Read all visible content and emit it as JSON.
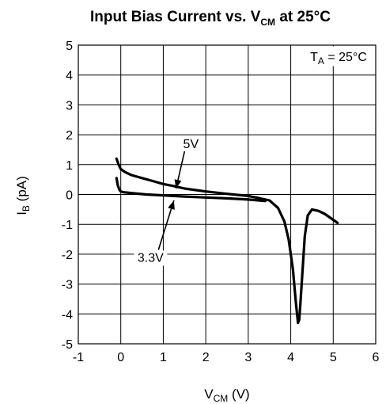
{
  "chart_data": {
    "type": "line",
    "title": {
      "prefix": "Input Bias Current vs. V",
      "sub": "CM",
      "suffix": " at 25°C"
    },
    "xlabel": {
      "main": "V",
      "sub": "CM",
      "suffix": " (V)"
    },
    "ylabel": {
      "main": "I",
      "sub": "B",
      "suffix": " (pA)"
    },
    "xlim": [
      -1,
      6
    ],
    "ylim": [
      -5,
      5
    ],
    "xticks": [
      "-1",
      "0",
      "1",
      "2",
      "3",
      "4",
      "5",
      "6"
    ],
    "yticks": [
      "5",
      "4",
      "3",
      "2",
      "1",
      "0",
      "-1",
      "-2",
      "-3",
      "-4",
      "-5"
    ],
    "grid": true,
    "condition_label": {
      "main": "T",
      "sub": "A",
      "suffix": " = 25°C"
    },
    "annotations": [
      {
        "text": "5V",
        "text_x": 1.65,
        "text_y": 1.55,
        "point_x": 1.3,
        "point_y": 0.2
      },
      {
        "text": "3.3V",
        "text_x": 0.7,
        "text_y": -2.25,
        "point_x": 1.25,
        "point_y": -0.2
      }
    ],
    "series": [
      {
        "color": "#000000",
        "x": [
          -0.1,
          -0.05,
          0,
          0.1,
          0.25,
          0.5,
          0.75,
          1,
          1.25,
          1.5,
          2,
          2.5,
          3,
          3.25,
          3.5,
          3.7,
          3.85,
          3.95,
          4.05,
          4.12,
          4.17,
          4.2,
          4.23,
          4.28,
          4.33,
          4.4,
          4.5,
          4.65,
          4.8,
          5,
          5.1
        ],
        "y": [
          1.2,
          1.0,
          0.85,
          0.75,
          0.65,
          0.55,
          0.45,
          0.35,
          0.28,
          0.2,
          0.1,
          0.02,
          -0.05,
          -0.12,
          -0.2,
          -0.45,
          -0.9,
          -1.5,
          -2.5,
          -3.6,
          -4.3,
          -4.2,
          -3.6,
          -2.5,
          -1.4,
          -0.7,
          -0.5,
          -0.55,
          -0.65,
          -0.85,
          -0.95
        ]
      },
      {
        "color": "#000000",
        "x": [
          -0.1,
          -0.07,
          -0.03,
          0,
          0.05,
          0.1,
          0.3,
          0.6,
          1,
          1.5,
          2,
          2.5,
          3,
          3.25,
          3.4
        ],
        "y": [
          0.55,
          0.3,
          0.15,
          0.1,
          0.08,
          0.07,
          0.04,
          0.0,
          -0.03,
          -0.07,
          -0.1,
          -0.13,
          -0.17,
          -0.2,
          -0.22
        ]
      }
    ]
  }
}
